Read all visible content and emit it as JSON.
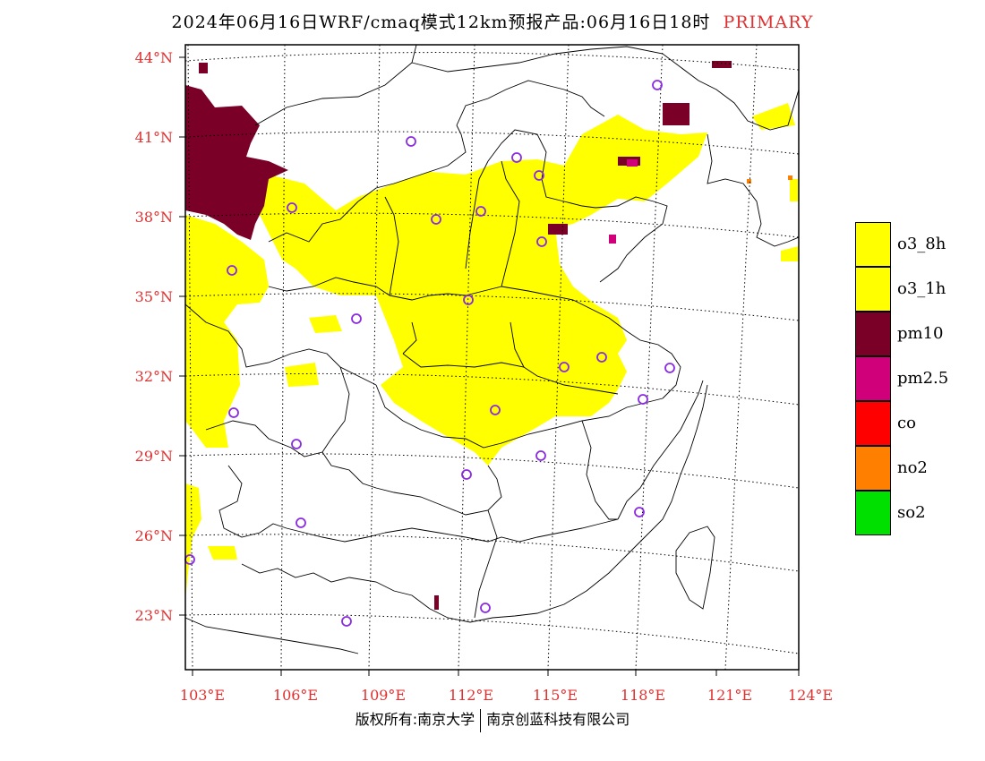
{
  "title": {
    "main": "2024年06月16日WRF/cmaq模式12km预报产品:06月16日18时",
    "flag": "PRIMARY"
  },
  "axes": {
    "lat_labels": [
      "44°N",
      "41°N",
      "38°N",
      "35°N",
      "32°N",
      "29°N",
      "26°N",
      "23°N"
    ],
    "lon_labels": [
      "103°E",
      "106°E",
      "109°E",
      "112°E",
      "115°E",
      "118°E",
      "121°E",
      "124°E"
    ]
  },
  "legend": [
    {
      "label": "o3_8h",
      "color": "#ffff00"
    },
    {
      "label": "o3_1h",
      "color": "#ffff00"
    },
    {
      "label": "pm10",
      "color": "#7a0028"
    },
    {
      "label": "pm2.5",
      "color": "#d0007a"
    },
    {
      "label": "co",
      "color": "#ff0000"
    },
    {
      "label": "no2",
      "color": "#ff8000"
    },
    {
      "label": "so2",
      "color": "#00e000"
    }
  ],
  "footer": {
    "left": "版权所有:南京大学",
    "right": "南京创蓝科技有限公司"
  },
  "colors": {
    "o3": "#ffff00",
    "pm10": "#7a0028",
    "pm25": "#d0007a",
    "no2": "#ff8000",
    "station_ring": "#8a2be2",
    "axis_label": "#e03030"
  }
}
